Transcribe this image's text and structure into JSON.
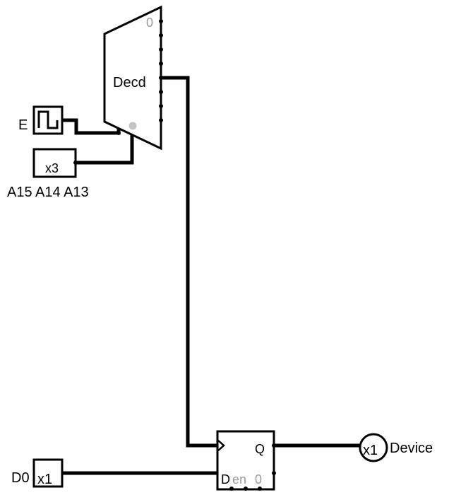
{
  "decoder": {
    "label": "Decd",
    "first_output": "0",
    "output_count": 8,
    "select_bits": 3
  },
  "enable_clock": {
    "label": "E"
  },
  "address_input": {
    "width_label": "x3",
    "pins_label": "A15 A14 A13"
  },
  "data_input": {
    "label": "D0",
    "width_label": "x1"
  },
  "flipflop": {
    "q_label": "Q",
    "d_label": "D",
    "en_label": "en",
    "en_value": "0"
  },
  "output": {
    "width_label": "x1",
    "label": "Device"
  }
}
